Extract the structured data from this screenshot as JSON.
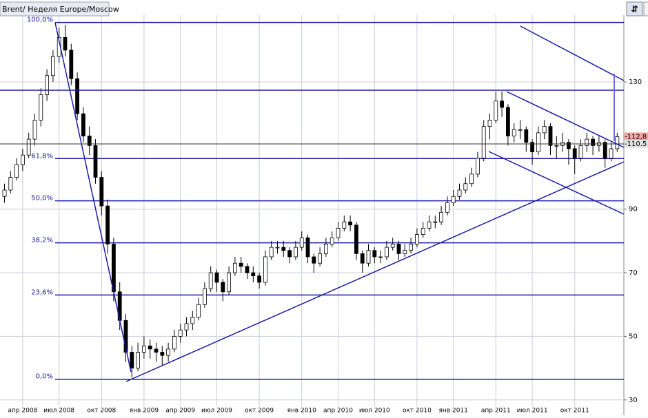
{
  "chart_data": {
    "type": "candlestick",
    "title": "Brent/ Неделя Europe/Moscow",
    "categories": [
      null,
      null,
      null,
      "апр 2008",
      null,
      null,
      null,
      null,
      null,
      "июл 2008",
      null,
      null,
      null,
      null,
      null,
      null,
      "окт 2008",
      null,
      null,
      null,
      null,
      null,
      null,
      "янв 2009",
      null,
      null,
      null,
      null,
      null,
      "апр 2009",
      null,
      null,
      null,
      null,
      null,
      "июл 2009",
      null,
      null,
      null,
      null,
      null,
      null,
      "окт 2009",
      null,
      null,
      null,
      null,
      null,
      null,
      "янв 2010",
      null,
      null,
      null,
      null,
      null,
      "апр 2010",
      null,
      null,
      null,
      null,
      null,
      "июл 2010",
      null,
      null,
      null,
      null,
      null,
      null,
      "окт 2010",
      null,
      null,
      null,
      null,
      null,
      "янв 2011",
      null,
      null,
      null,
      null,
      null,
      null,
      "апр 2011",
      null,
      null,
      null,
      null,
      null,
      "июл 2011",
      null,
      null,
      null,
      null,
      null,
      null,
      "окт 2011",
      null,
      null,
      null,
      null,
      null,
      null,
      null
    ],
    "ohlc": [
      [
        94,
        98,
        92,
        96
      ],
      [
        96,
        102,
        95,
        100
      ],
      [
        100,
        106,
        99,
        104
      ],
      [
        104,
        109,
        102,
        107
      ],
      [
        107,
        114,
        106,
        112
      ],
      [
        112,
        120,
        110,
        118
      ],
      [
        118,
        128,
        116,
        126
      ],
      [
        126,
        134,
        124,
        132
      ],
      [
        132,
        140,
        130,
        138
      ],
      [
        138,
        147,
        136,
        144
      ],
      [
        144,
        148,
        138,
        140
      ],
      [
        140,
        142,
        129,
        131
      ],
      [
        131,
        133,
        118,
        120
      ],
      [
        120,
        122,
        111,
        113
      ],
      [
        113,
        116,
        107,
        110
      ],
      [
        110,
        112,
        98,
        100
      ],
      [
        100,
        102,
        88,
        91
      ],
      [
        91,
        93,
        76,
        79
      ],
      [
        79,
        81,
        61,
        64
      ],
      [
        64,
        67,
        52,
        55
      ],
      [
        55,
        57,
        42,
        45
      ],
      [
        45,
        47,
        37,
        40
      ],
      [
        40,
        48,
        39,
        45
      ],
      [
        45,
        50,
        43,
        47
      ],
      [
        47,
        49,
        43,
        46
      ],
      [
        46,
        48,
        42,
        45
      ],
      [
        45,
        47,
        41,
        44
      ],
      [
        44,
        48,
        42,
        46
      ],
      [
        46,
        52,
        45,
        50
      ],
      [
        50,
        54,
        48,
        52
      ],
      [
        52,
        56,
        50,
        54
      ],
      [
        54,
        58,
        52,
        56
      ],
      [
        56,
        62,
        55,
        60
      ],
      [
        60,
        67,
        59,
        65
      ],
      [
        65,
        72,
        64,
        70
      ],
      [
        70,
        71,
        64,
        67
      ],
      [
        67,
        68,
        61,
        64
      ],
      [
        64,
        72,
        63,
        70
      ],
      [
        70,
        75,
        69,
        73
      ],
      [
        73,
        75,
        70,
        72
      ],
      [
        72,
        73,
        68,
        70
      ],
      [
        70,
        72,
        67,
        69
      ],
      [
        69,
        70,
        65,
        67
      ],
      [
        67,
        77,
        66,
        75
      ],
      [
        75,
        80,
        74,
        78
      ],
      [
        78,
        80,
        76,
        78
      ],
      [
        78,
        80,
        75,
        77
      ],
      [
        77,
        78,
        73,
        75
      ],
      [
        75,
        80,
        74,
        78
      ],
      [
        78,
        83,
        77,
        81
      ],
      [
        81,
        82,
        73,
        75
      ],
      [
        75,
        76,
        70,
        73
      ],
      [
        73,
        78,
        72,
        76
      ],
      [
        76,
        81,
        75,
        79
      ],
      [
        79,
        83,
        78,
        81
      ],
      [
        81,
        86,
        80,
        84
      ],
      [
        84,
        88,
        83,
        86
      ],
      [
        86,
        88,
        83,
        85
      ],
      [
        85,
        86,
        74,
        76
      ],
      [
        76,
        77,
        70,
        73
      ],
      [
        73,
        79,
        72,
        77
      ],
      [
        77,
        78,
        73,
        75
      ],
      [
        75,
        77,
        73,
        75
      ],
      [
        75,
        80,
        74,
        78
      ],
      [
        78,
        81,
        77,
        79
      ],
      [
        79,
        80,
        74,
        76
      ],
      [
        76,
        79,
        75,
        77
      ],
      [
        77,
        81,
        76,
        79
      ],
      [
        79,
        84,
        78,
        82
      ],
      [
        82,
        86,
        81,
        84
      ],
      [
        84,
        88,
        83,
        86
      ],
      [
        86,
        88,
        84,
        86
      ],
      [
        86,
        91,
        85,
        89
      ],
      [
        89,
        94,
        88,
        92
      ],
      [
        92,
        96,
        91,
        94
      ],
      [
        94,
        98,
        93,
        96
      ],
      [
        96,
        100,
        95,
        98
      ],
      [
        98,
        103,
        97,
        101
      ],
      [
        101,
        108,
        100,
        106
      ],
      [
        106,
        118,
        105,
        116
      ],
      [
        116,
        120,
        112,
        118
      ],
      [
        118,
        127,
        117,
        124
      ],
      [
        124,
        127,
        119,
        122
      ],
      [
        122,
        123,
        110,
        113
      ],
      [
        113,
        117,
        111,
        115
      ],
      [
        115,
        118,
        112,
        115
      ],
      [
        115,
        116,
        108,
        111
      ],
      [
        111,
        112,
        104,
        108
      ],
      [
        108,
        116,
        107,
        114
      ],
      [
        114,
        118,
        112,
        116
      ],
      [
        116,
        117,
        107,
        110
      ],
      [
        110,
        113,
        106,
        110
      ],
      [
        110,
        114,
        108,
        111
      ],
      [
        111,
        112,
        104,
        109
      ],
      [
        109,
        110,
        101,
        106
      ],
      [
        106,
        112,
        105,
        110
      ],
      [
        110,
        114,
        108,
        112
      ],
      [
        112,
        113,
        107,
        110
      ],
      [
        110,
        113,
        108,
        111
      ],
      [
        111,
        112,
        103,
        106
      ],
      [
        106,
        111,
        105,
        109
      ],
      [
        109,
        114,
        108,
        112.8
      ]
    ],
    "ylim": [
      28,
      151
    ],
    "yticks": [
      30,
      50,
      70,
      90,
      130
    ],
    "grid": true,
    "fib_levels": [
      {
        "value": 148.7,
        "label": "100,0%"
      },
      {
        "value": 105.9,
        "label": "61,8%"
      },
      {
        "value": 92.6,
        "label": "50,0%"
      },
      {
        "value": 79.4,
        "label": "38,2%"
      },
      {
        "value": 63,
        "label": "23,6%"
      },
      {
        "value": 36.5,
        "label": "0,0%"
      }
    ],
    "price_lines": [
      {
        "value": 112.8,
        "label": "-112,8",
        "color": "#f5a3a3"
      },
      {
        "value": 110.5,
        "label": "-110.5",
        "color": "#e4e4e4"
      }
    ]
  }
}
